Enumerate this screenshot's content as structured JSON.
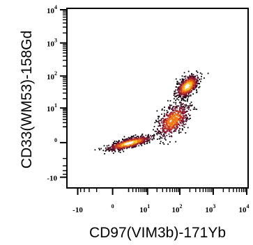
{
  "chart_data": {
    "type": "scatter",
    "title": "",
    "xlabel": "CD97(VIM3b)-171Yb",
    "ylabel": "CD33(WM53)-158Gd",
    "x_scale": "biexponential",
    "y_scale": "biexponential",
    "xlim": [
      -20,
      10000
    ],
    "ylim": [
      -20,
      10000
    ],
    "x_ticks": [
      {
        "value": -10,
        "base": "-10",
        "exp": ""
      },
      {
        "value": 0,
        "base": "",
        "exp": "0"
      },
      {
        "value": 10,
        "base": "10",
        "exp": "1"
      },
      {
        "value": 100,
        "base": "10",
        "exp": "2"
      },
      {
        "value": 1000,
        "base": "10",
        "exp": "3"
      },
      {
        "value": 10000,
        "base": "10",
        "exp": "4"
      }
    ],
    "y_ticks": [
      {
        "value": -10,
        "base": "-10",
        "exp": ""
      },
      {
        "value": 0,
        "base": "",
        "exp": "0"
      },
      {
        "value": 10,
        "base": "10",
        "exp": "1"
      },
      {
        "value": 100,
        "base": "10",
        "exp": "2"
      },
      {
        "value": 1000,
        "base": "10",
        "exp": "3"
      },
      {
        "value": 10000,
        "base": "10",
        "exp": "4"
      }
    ],
    "grid": false,
    "legend": "none",
    "density_colormap": [
      "#000000",
      "#3d0a1e",
      "#8a1630",
      "#c93b1e",
      "#ee7a1a",
      "#fbc531",
      "#ffffff"
    ],
    "populations": [
      {
        "x_center": 160,
        "y_center": 50,
        "density": "high"
      },
      {
        "x_center": 60,
        "y_center": 4,
        "density": "medium"
      },
      {
        "x_center": 2,
        "y_center": 0,
        "density": "high"
      }
    ]
  }
}
